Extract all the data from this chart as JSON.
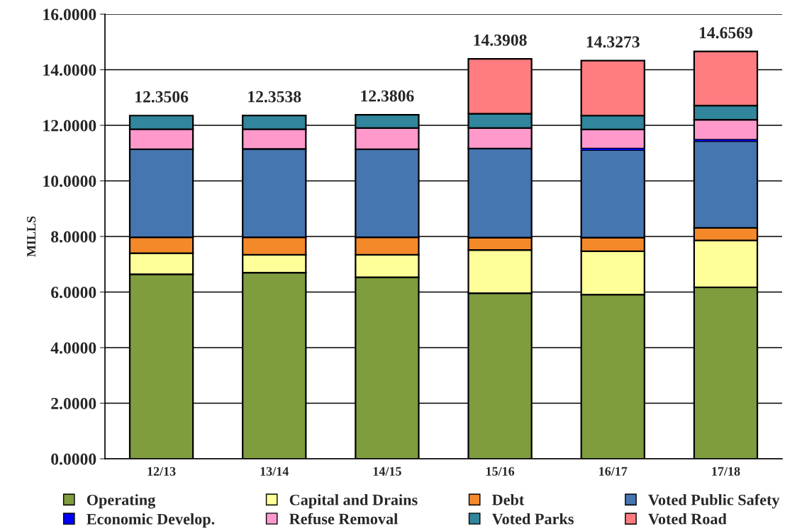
{
  "chart_data": {
    "type": "bar",
    "stacked": true,
    "ylabel": "MILLS",
    "categories": [
      "12/13",
      "13/14",
      "14/15",
      "15/16",
      "16/17",
      "17/18"
    ],
    "series": [
      {
        "name": "Operating",
        "color": "#7f9c3f",
        "values": [
          6.64,
          6.7,
          6.53,
          5.96,
          5.91,
          6.17
        ]
      },
      {
        "name": "Capital and Drains",
        "color": "#ffff99",
        "values": [
          0.76,
          0.64,
          0.81,
          1.55,
          1.56,
          1.69
        ]
      },
      {
        "name": "Debt",
        "color": "#f4892a",
        "values": [
          0.57,
          0.63,
          0.63,
          0.45,
          0.49,
          0.45
        ]
      },
      {
        "name": "Voted Public Safety",
        "color": "#4676b0",
        "values": [
          3.17,
          3.18,
          3.17,
          3.2,
          3.15,
          3.12
        ]
      },
      {
        "name": "Economic Develop.",
        "color": "#0000ff",
        "values": [
          null,
          null,
          null,
          null,
          0.05,
          0.05
        ]
      },
      {
        "name": "Refuse Removal",
        "color": "#ff99cc",
        "values": [
          0.72,
          0.71,
          0.76,
          0.74,
          0.69,
          0.72
        ]
      },
      {
        "name": "Voted Parks",
        "color": "#31859c",
        "values": [
          0.4906,
          0.4938,
          0.4806,
          0.52,
          0.5,
          0.51
        ]
      },
      {
        "name": "Voted Road",
        "color": "#ff7c80",
        "values": [
          null,
          null,
          null,
          1.9708,
          1.9773,
          1.9469
        ]
      }
    ],
    "totals": [
      "12.3506",
      "12.3538",
      "12.3806",
      "14.3908",
      "14.3273",
      "14.6569"
    ],
    "ylim": [
      0,
      16
    ],
    "yticks": [
      {
        "value": 0,
        "label": "0.0000"
      },
      {
        "value": 2,
        "label": "2.0000"
      },
      {
        "value": 4,
        "label": "4.0000"
      },
      {
        "value": 6,
        "label": "6.0000"
      },
      {
        "value": 8,
        "label": "8.0000"
      },
      {
        "value": 10,
        "label": "10.0000"
      },
      {
        "value": 12,
        "label": "12.0000"
      },
      {
        "value": 14,
        "label": "14.0000"
      },
      {
        "value": 16,
        "label": "16.0000"
      }
    ],
    "grid": "y",
    "legend": "bottom"
  }
}
